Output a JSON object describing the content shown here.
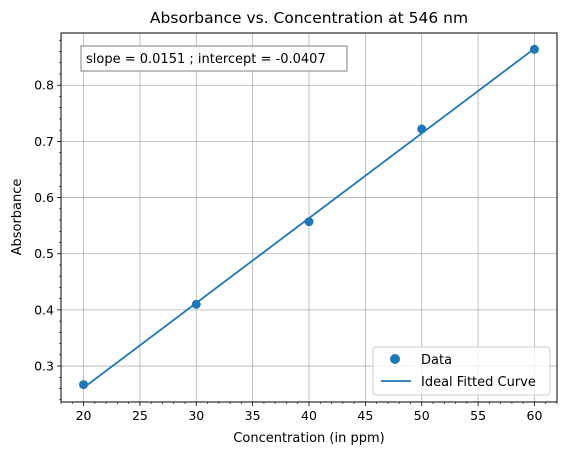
{
  "chart_data": {
    "type": "scatter",
    "title": "Absorbance vs. Concentration at 546 nm",
    "xlabel": "Concentration (in ppm)",
    "ylabel": "Absorbance",
    "xlim": [
      18.0,
      62.0
    ],
    "ylim": [
      0.236,
      0.893
    ],
    "xticks": [
      20,
      25,
      30,
      35,
      40,
      45,
      50,
      55,
      60
    ],
    "yticks": [
      0.3,
      0.4,
      0.5,
      0.6,
      0.7,
      0.8
    ],
    "xtick_labels": [
      "20",
      "25",
      "30",
      "35",
      "40",
      "45",
      "50",
      "55",
      "60"
    ],
    "ytick_labels": [
      "0.3",
      "0.4",
      "0.5",
      "0.6",
      "0.7",
      "0.8"
    ],
    "minor_xticks": true,
    "minor_yticks": true,
    "grid": true,
    "series": [
      {
        "name": "Data",
        "kind": "scatter",
        "color": "#1f77b4",
        "x": [
          20,
          30,
          40,
          50,
          60
        ],
        "y": [
          0.267,
          0.41,
          0.557,
          0.722,
          0.864
        ]
      },
      {
        "name": "Ideal Fitted Curve",
        "kind": "line",
        "color": "#1f77b4",
        "x": [
          20,
          60
        ],
        "y": [
          0.2613,
          0.8653
        ]
      }
    ],
    "annotation": "slope = 0.0151 ; intercept = -0.0407",
    "legend_position": "lower-right"
  }
}
